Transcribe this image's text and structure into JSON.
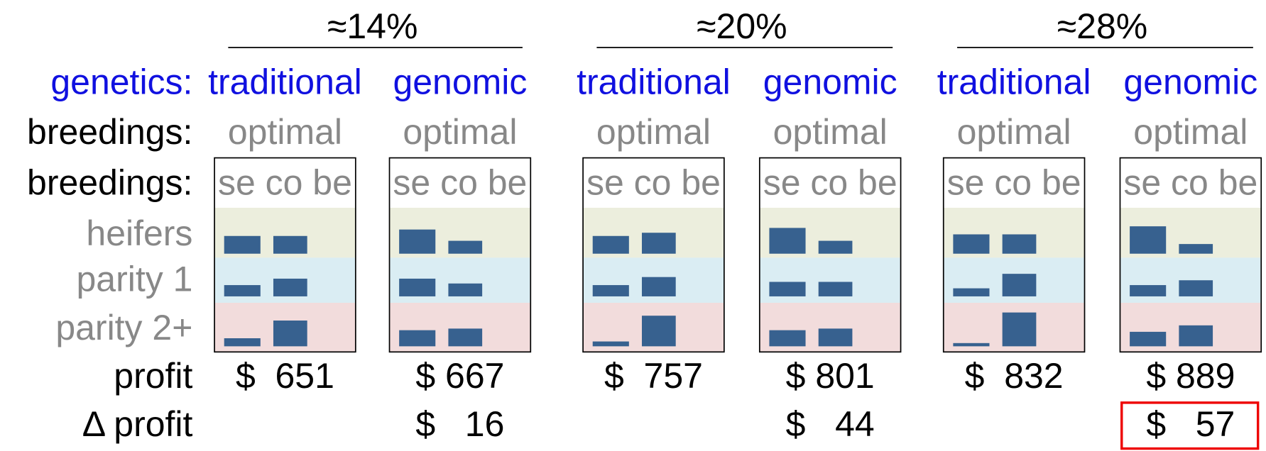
{
  "row_labels": [
    "genetics:",
    "breedings:",
    "breedings:",
    "heifers",
    "parity 1",
    "parity 2+",
    "profit",
    "Δ profit"
  ],
  "groups": [
    {
      "header": "≈14%",
      "columns": [
        {
          "genetics": "traditional",
          "breedings": "optimal",
          "breeding_types": "se co be",
          "bars": [
            [
              22,
              22
            ],
            [
              14,
              22
            ],
            [
              10,
              32
            ]
          ],
          "profit": "$  651"
        },
        {
          "genetics": "genomic",
          "breedings": "optimal",
          "breeding_types": "se co be",
          "bars": [
            [
              30,
              16
            ],
            [
              22,
              16
            ],
            [
              20,
              22
            ]
          ],
          "profit": "$ 667",
          "delta_profit": "$   16"
        }
      ]
    },
    {
      "header": "≈20%",
      "columns": [
        {
          "genetics": "traditional",
          "breedings": "optimal",
          "breeding_types": "se co be",
          "bars": [
            [
              22,
              26
            ],
            [
              14,
              24
            ],
            [
              6,
              38
            ]
          ],
          "profit": "$  757"
        },
        {
          "genetics": "genomic",
          "breedings": "optimal",
          "breeding_types": "se co be",
          "bars": [
            [
              32,
              16
            ],
            [
              18,
              18
            ],
            [
              20,
              22
            ]
          ],
          "profit": "$ 801",
          "delta_profit": "$   44"
        }
      ]
    },
    {
      "header": "≈28%",
      "columns": [
        {
          "genetics": "traditional",
          "breedings": "optimal",
          "breeding_types": "se co be",
          "bars": [
            [
              24,
              24
            ],
            [
              10,
              28
            ],
            [
              4,
              42
            ]
          ],
          "profit": "$  832"
        },
        {
          "genetics": "genomic",
          "breedings": "optimal",
          "breeding_types": "se co be",
          "bars": [
            [
              34,
              12
            ],
            [
              14,
              20
            ],
            [
              18,
              26
            ]
          ],
          "profit": "$ 889",
          "delta_profit": "$   57"
        }
      ]
    }
  ]
}
